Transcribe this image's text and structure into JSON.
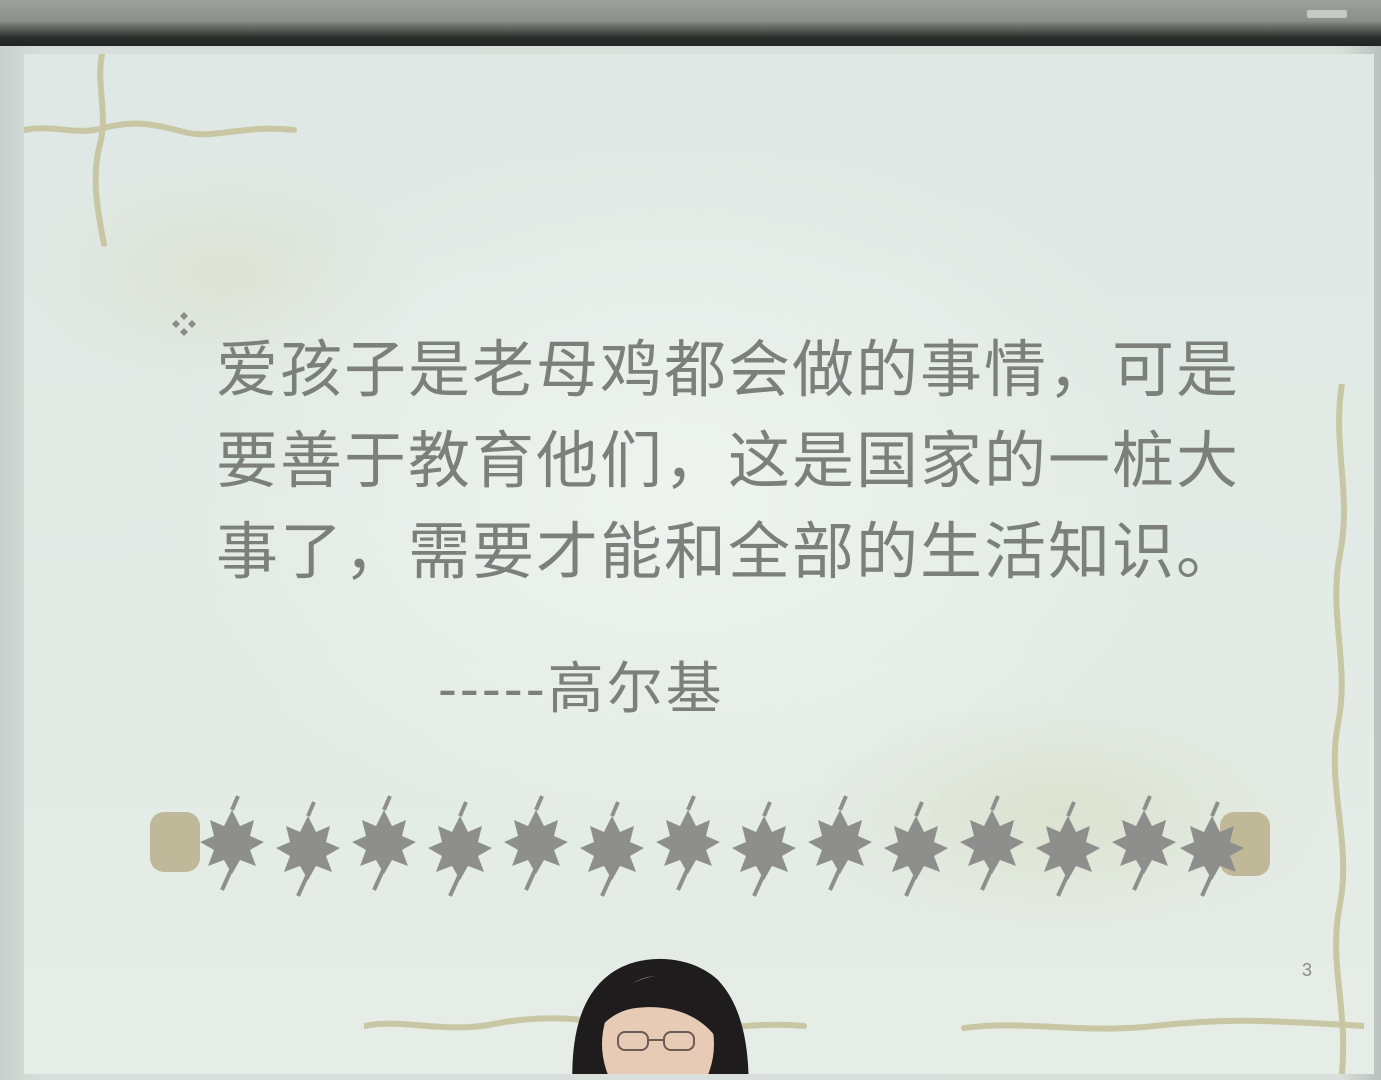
{
  "slide": {
    "quote_text": "爱孩子是老母鸡都会做的事情，可是要善于教育他们，这是国家的一桩大事了，需要才能和全部的生活知识。",
    "attribution": "-----高尔基",
    "page_number": "3"
  },
  "icons": {
    "bullet": "four-diamond-bullet-icon",
    "border": "maple-leaf-icon"
  },
  "colors": {
    "slide_background": "#e2eae6",
    "text": "#7d7f7d",
    "leaf": "#8e8f8c",
    "vine": "#c9c6a4",
    "hair": "#1e1c1d",
    "skin": "#e8cbb5"
  }
}
